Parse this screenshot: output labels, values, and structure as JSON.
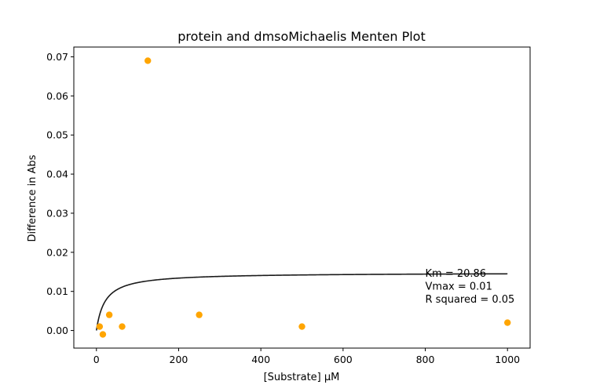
{
  "chart_data": {
    "type": "scatter",
    "title": "protein and dmsoMichaelis Menten Plot",
    "xlabel": "[Substrate] µM",
    "ylabel": "Difference in Abs",
    "xlim": [
      -55,
      1055
    ],
    "ylim": [
      -0.0045,
      0.0725
    ],
    "xticks": [
      0,
      200,
      400,
      600,
      800,
      1000
    ],
    "xtick_labels": [
      "0",
      "200",
      "400",
      "600",
      "800",
      "1000"
    ],
    "yticks": [
      0.0,
      0.01,
      0.02,
      0.03,
      0.04,
      0.05,
      0.06,
      0.07
    ],
    "ytick_labels": [
      "0.00",
      "0.01",
      "0.02",
      "0.03",
      "0.04",
      "0.05",
      "0.06",
      "0.07"
    ],
    "grid": false,
    "series": [
      {
        "kind": "scatter",
        "color": "#ffa500",
        "x": [
          7.8,
          15.6,
          31.25,
          62.5,
          125,
          250,
          500,
          1000
        ],
        "y": [
          0.001,
          -0.001,
          0.004,
          0.001,
          0.069,
          0.004,
          0.001,
          0.002
        ]
      },
      {
        "kind": "line",
        "color": "#1a1a1a",
        "model": "michaelis-menten",
        "vmax": 0.0148,
        "km": 20.86,
        "x_range": [
          0,
          1000
        ]
      }
    ],
    "annotations": [
      {
        "lines": [
          "Km = 20.86",
          "Vmax = 0.01",
          "R squared = 0.05"
        ],
        "x": 800,
        "y": 0.0145
      }
    ]
  }
}
